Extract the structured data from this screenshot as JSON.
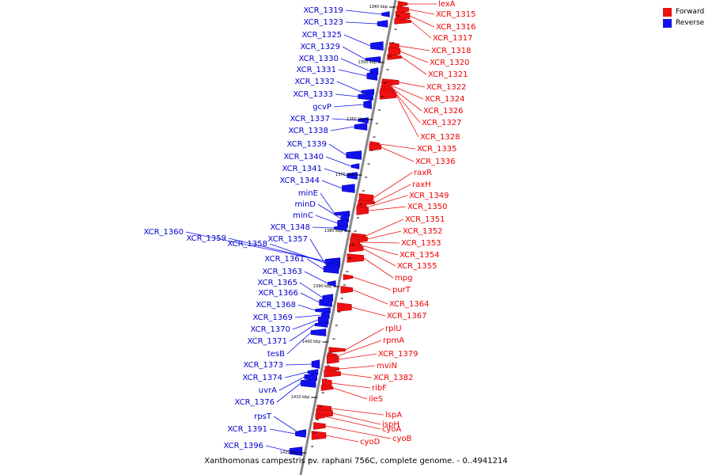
{
  "caption": "Xanthomonas campestris pv. raphani 756C, complete genome. - 0..4941214",
  "legend": [
    {
      "label": "Forward",
      "color": "#ee1111"
    },
    {
      "label": "Reverse",
      "color": "#1111ee"
    }
  ],
  "colors": {
    "forward": "#ee1111",
    "reverse": "#1111ee",
    "axis": "#888888"
  },
  "scale_ticks": [
    "1340 kbp",
    "1350 kbp",
    "1360 kbp",
    "1370 kbp",
    "1380 kbp",
    "1390 kbp",
    "1400 kbp",
    "1410 kbp",
    "1420 kbp"
  ],
  "forward_genes": [
    "lexA",
    "XCR_1315",
    "XCR_1316",
    "XCR_1317",
    "XCR_1318",
    "XCR_1320",
    "XCR_1321",
    "XCR_1322",
    "XCR_1324",
    "XCR_1326",
    "XCR_1327",
    "XCR_1328",
    "XCR_1335",
    "XCR_1336",
    "raxR",
    "raxH",
    "XCR_1349",
    "XCR_1350",
    "XCR_1351",
    "XCR_1352",
    "XCR_1353",
    "XCR_1354",
    "XCR_1355",
    "mpg",
    "purT",
    "XCR_1364",
    "XCR_1367",
    "rplU",
    "rpmA",
    "XCR_1379",
    "mviN",
    "XCR_1382",
    "ribF",
    "ileS",
    "lspA",
    "ispH",
    "cyoA",
    "cyoB",
    "cyoD"
  ],
  "reverse_genes": [
    "XCR_1319",
    "XCR_1323",
    "XCR_1325",
    "XCR_1329",
    "XCR_1330",
    "XCR_1331",
    "XCR_1332",
    "XCR_1333",
    "gcvP",
    "XCR_1337",
    "XCR_1338",
    "XCR_1339",
    "XCR_1340",
    "XCR_1341",
    "XCR_1344",
    "minE",
    "minD",
    "minC",
    "XCR_1348",
    "XCR_1360",
    "XCR_1359",
    "XCR_1358",
    "XCR_1357",
    "XCR_1361",
    "XCR_1363",
    "XCR_1365",
    "XCR_1366",
    "XCR_1368",
    "XCR_1369",
    "XCR_1370",
    "XCR_1371",
    "tesB",
    "XCR_1373",
    "XCR_1374",
    "uvrA",
    "XCR_1376",
    "rpsT",
    "XCR_1391",
    "XCR_1396"
  ]
}
